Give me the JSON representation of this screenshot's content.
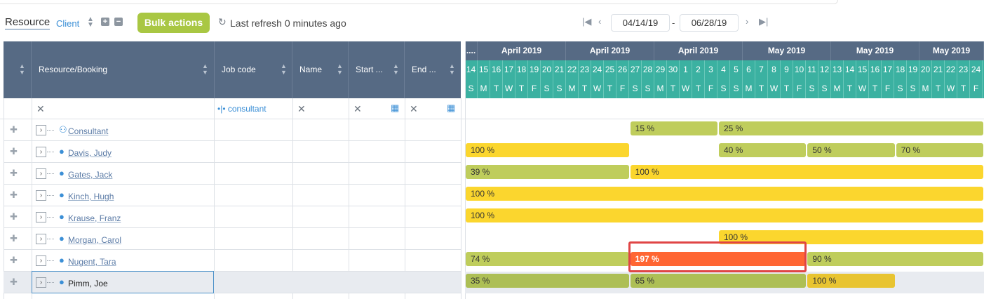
{
  "toolbar": {
    "view_resource": "Resource",
    "view_client": "Client",
    "bulk_actions": "Bulk actions",
    "refresh_text": "Last refresh 0 minutes ago",
    "date_from": "04/14/19",
    "date_sep": "-",
    "date_to": "06/28/19"
  },
  "columns": {
    "resource_booking": "Resource/Booking",
    "job_code": "Job code",
    "name": "Name",
    "start": "Start ...",
    "end": "End ..."
  },
  "filters": {
    "job_code_value": "consultant"
  },
  "timeline": {
    "months": [
      "....",
      "April 2019",
      "April 2019",
      "April 2019",
      "May 2019",
      "May 2019",
      "May 2019"
    ],
    "days": [
      "14",
      "15",
      "16",
      "17",
      "18",
      "19",
      "20",
      "21",
      "22",
      "23",
      "24",
      "25",
      "26",
      "27",
      "28",
      "29",
      "30",
      "1",
      "2",
      "3",
      "4",
      "5",
      "6",
      "7",
      "8",
      "9",
      "10",
      "11",
      "12",
      "13",
      "14",
      "15",
      "16",
      "17",
      "18",
      "19",
      "20",
      "21",
      "22",
      "23",
      "24"
    ],
    "weekdays": [
      "S",
      "M",
      "T",
      "W",
      "T",
      "F",
      "S",
      "S",
      "M",
      "T",
      "W",
      "T",
      "F",
      "S",
      "S",
      "M",
      "T",
      "W",
      "T",
      "F",
      "S",
      "S",
      "M",
      "T",
      "W",
      "T",
      "F",
      "S",
      "S",
      "M",
      "T",
      "W",
      "T",
      "F",
      "S",
      "S",
      "M",
      "T",
      "W",
      "T",
      "F"
    ]
  },
  "rows": [
    {
      "name": "Consultant",
      "generic": true,
      "bars": [
        {
          "day": 13,
          "len": 7,
          "label": "15 %",
          "color": "g"
        },
        {
          "day": 20,
          "len": 21,
          "label": "25 %",
          "color": "g"
        }
      ]
    },
    {
      "name": "Davis, Judy",
      "bars": [
        {
          "day": 0,
          "len": 13,
          "label": "100 %",
          "color": "y"
        },
        {
          "day": 20,
          "len": 7,
          "label": "40 %",
          "color": "g"
        },
        {
          "day": 27,
          "len": 7,
          "label": "50 %",
          "color": "g"
        },
        {
          "day": 34,
          "len": 7,
          "label": "70 %",
          "color": "g"
        }
      ]
    },
    {
      "name": "Gates, Jack",
      "bars": [
        {
          "day": 0,
          "len": 13,
          "label": "39 %",
          "color": "g"
        },
        {
          "day": 13,
          "len": 28,
          "label": "100 %",
          "color": "y"
        }
      ]
    },
    {
      "name": "Kinch, Hugh",
      "bars": [
        {
          "day": 0,
          "len": 41,
          "label": "100 %",
          "color": "y"
        }
      ]
    },
    {
      "name": "Krause, Franz",
      "bars": [
        {
          "day": 0,
          "len": 41,
          "label": "100 %",
          "color": "y"
        }
      ]
    },
    {
      "name": "Morgan, Carol",
      "bars": [
        {
          "day": 20,
          "len": 21,
          "label": "100 %",
          "color": "y"
        }
      ]
    },
    {
      "name": "Nugent, Tara",
      "bars": [
        {
          "day": 0,
          "len": 13,
          "label": "74 %",
          "color": "g"
        },
        {
          "day": 13,
          "len": 14,
          "label": "197 %",
          "color": "o"
        },
        {
          "day": 27,
          "len": 14,
          "label": "90 %",
          "color": "g"
        }
      ]
    },
    {
      "name": "Pimm, Joe",
      "selected": true,
      "bars": [
        {
          "day": 0,
          "len": 13,
          "label": "35 %",
          "color": "gd"
        },
        {
          "day": 13,
          "len": 14,
          "label": "65 %",
          "color": "gd"
        },
        {
          "day": 27,
          "len": 7,
          "label": "100 %",
          "color": "yd"
        }
      ]
    }
  ]
}
